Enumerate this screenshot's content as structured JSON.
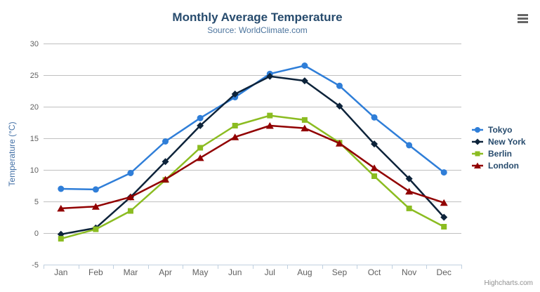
{
  "header": {
    "title": "Monthly Average Temperature",
    "subtitle": "Source: WorldClimate.com"
  },
  "menu": {
    "icon": "hamburger-icon"
  },
  "credits": {
    "label": "Highcharts.com"
  },
  "colors": {
    "title": "#274b6d",
    "subtitle": "#4d759e",
    "axis_label": "#606060",
    "y_axis_title": "#4572A7",
    "gridline": "#C0C0C0",
    "x_axis_line": "#C0D0E0",
    "legend_text": "#274b6d",
    "credits": "#909090",
    "menu_icon": "#666666",
    "background": "#ffffff"
  },
  "chart_data": {
    "type": "line",
    "title": "Monthly Average Temperature",
    "subtitle": "Source: WorldClimate.com",
    "categories": [
      "Jan",
      "Feb",
      "Mar",
      "Apr",
      "May",
      "Jun",
      "Jul",
      "Aug",
      "Sep",
      "Oct",
      "Nov",
      "Dec"
    ],
    "series": [
      {
        "name": "Tokyo",
        "color": "#2f7ed8",
        "marker": "circle",
        "values": [
          7.0,
          6.9,
          9.5,
          14.5,
          18.2,
          21.5,
          25.2,
          26.5,
          23.3,
          18.3,
          13.9,
          9.6
        ]
      },
      {
        "name": "New York",
        "color": "#0d233a",
        "marker": "diamond",
        "values": [
          -0.2,
          0.8,
          5.7,
          11.3,
          17.0,
          22.0,
          24.8,
          24.1,
          20.1,
          14.1,
          8.6,
          2.5
        ]
      },
      {
        "name": "Berlin",
        "color": "#8bbc21",
        "marker": "square",
        "values": [
          -0.9,
          0.6,
          3.5,
          8.4,
          13.5,
          17.0,
          18.6,
          17.9,
          14.3,
          9.0,
          3.9,
          1.0
        ]
      },
      {
        "name": "London",
        "color": "#910000",
        "marker": "triangle",
        "values": [
          3.9,
          4.2,
          5.7,
          8.5,
          11.9,
          15.2,
          17.0,
          16.6,
          14.2,
          10.3,
          6.6,
          4.8
        ]
      }
    ],
    "xlabel": "",
    "ylabel": "Temperature (°C)",
    "ylim": [
      -5,
      30
    ],
    "ytick_step": 5,
    "grid": true,
    "legend_position": "right"
  }
}
